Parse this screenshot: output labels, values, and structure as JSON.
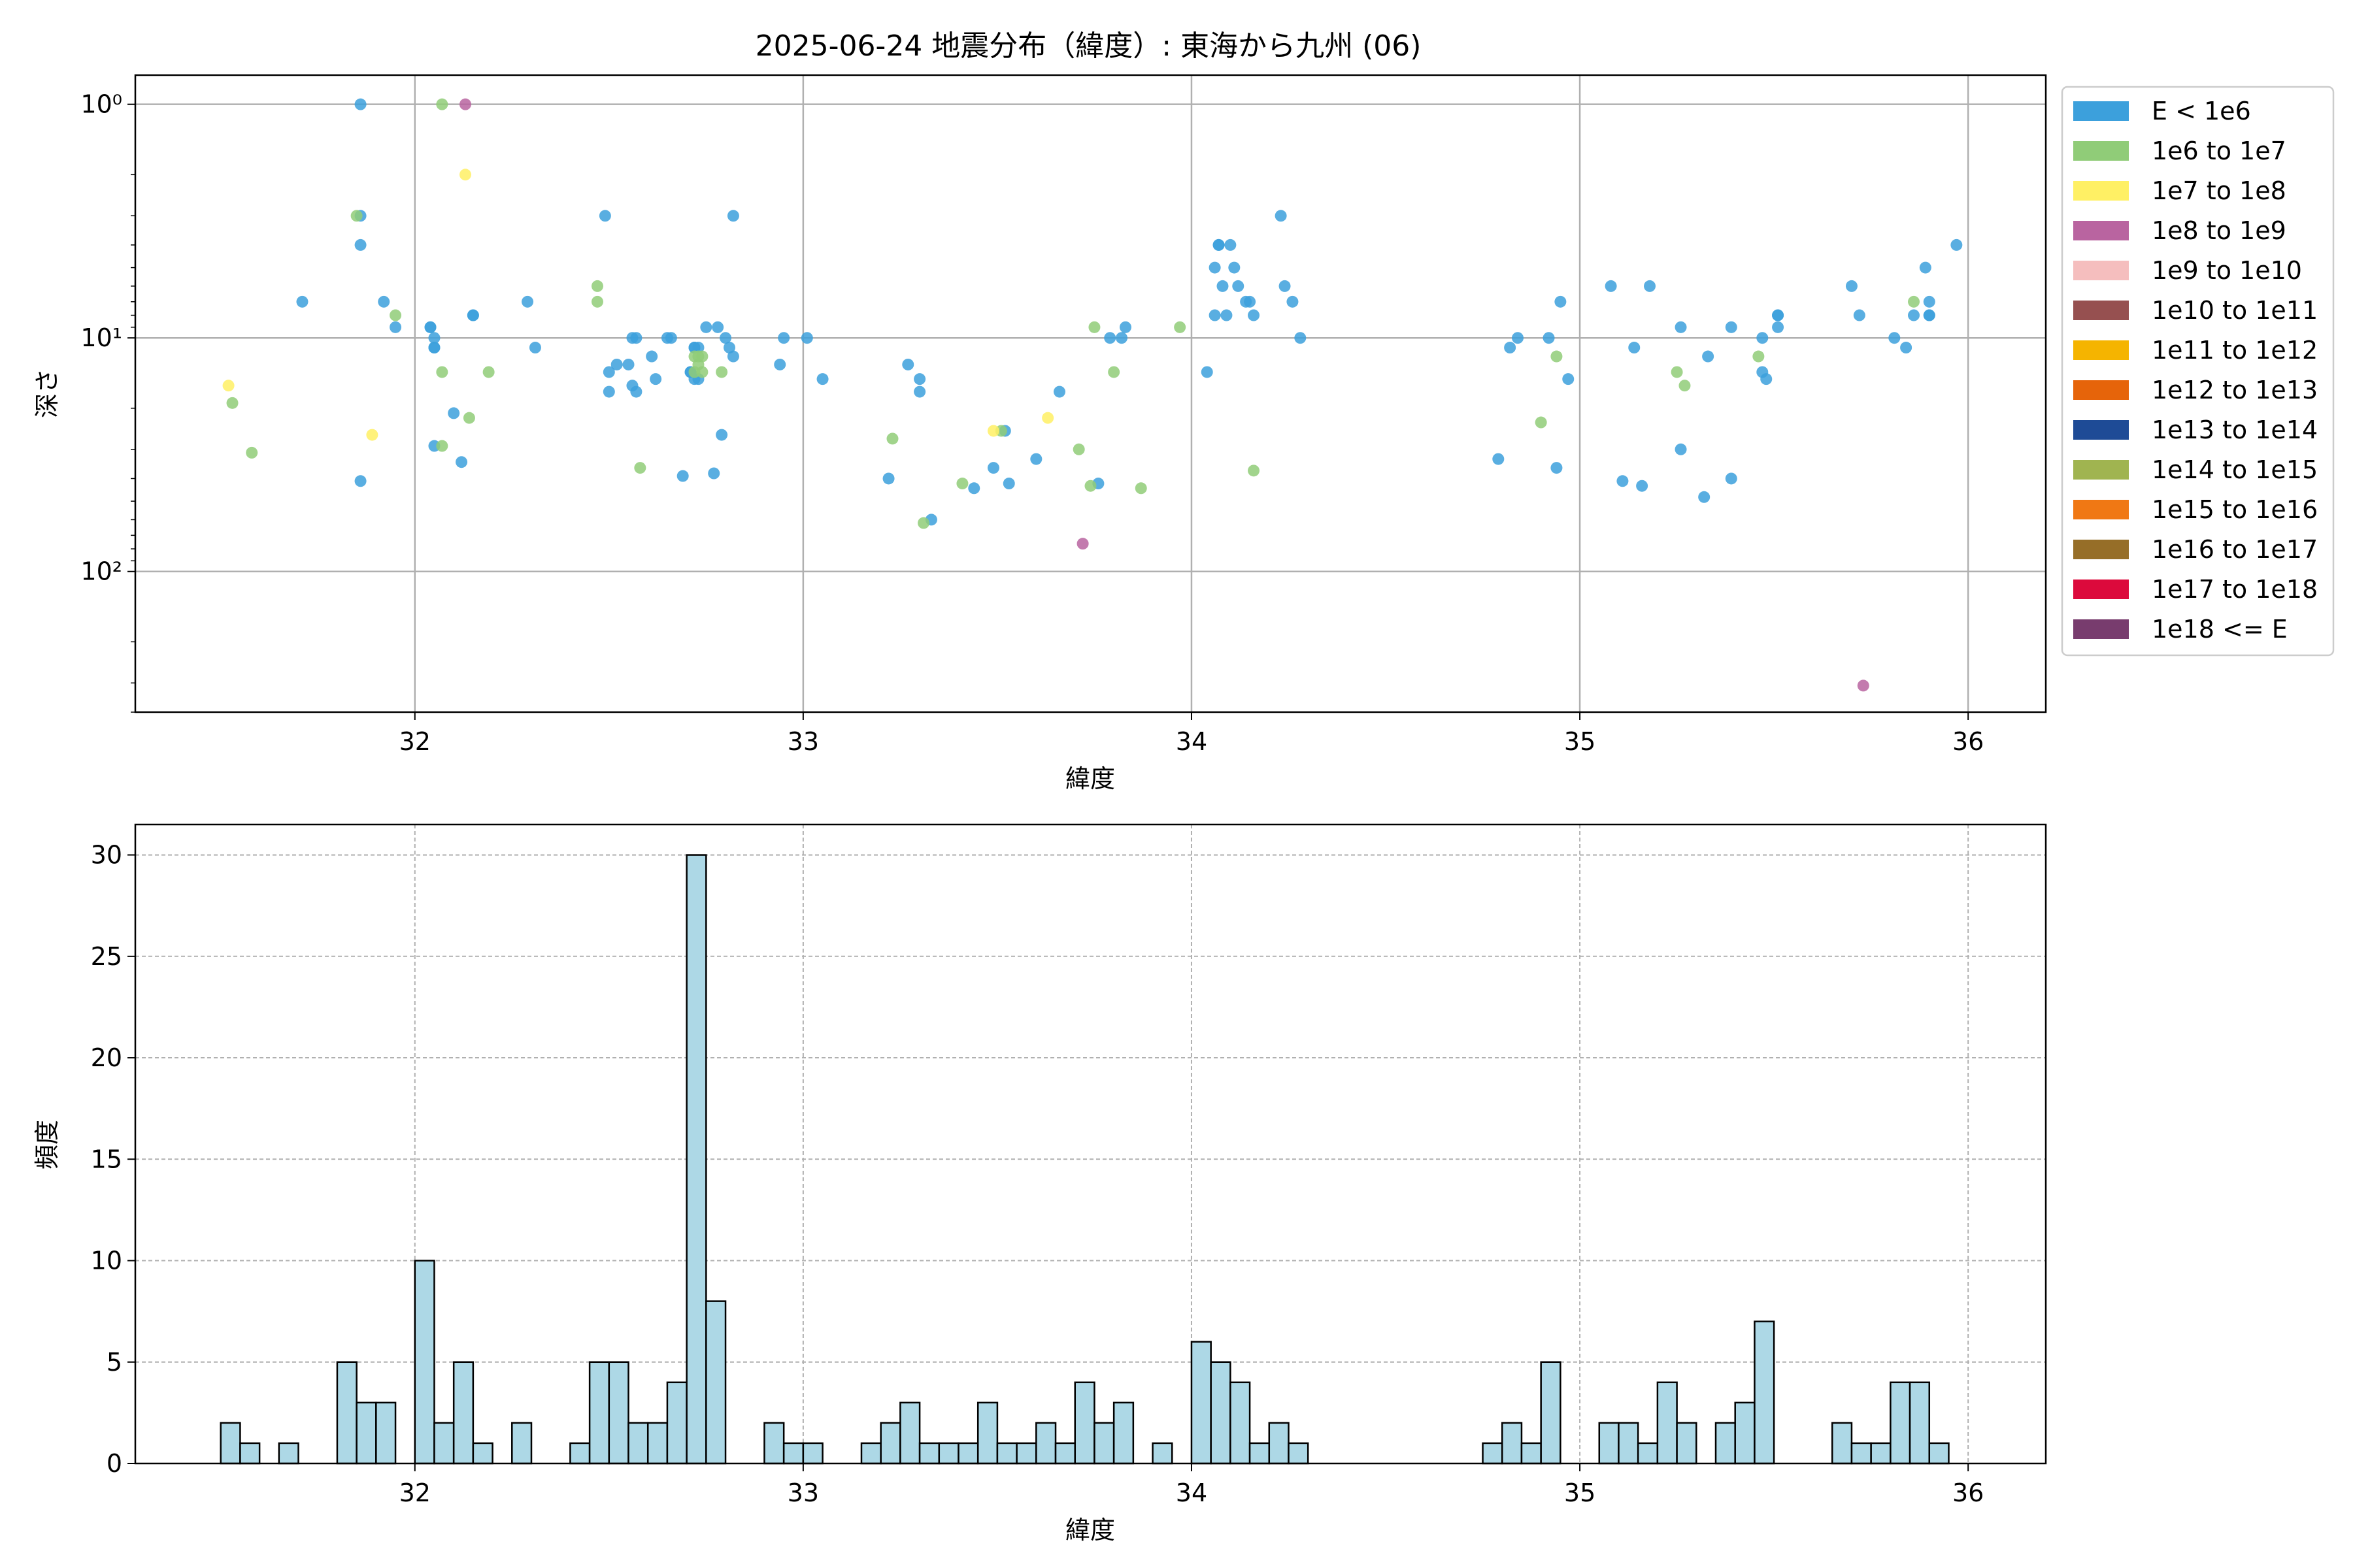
{
  "chart_data": [
    {
      "type": "scatter",
      "title": "2025-06-24 地震分布（緯度）: 東海から九州 (06)",
      "xlabel": "緯度",
      "ylabel": "深さ",
      "xlim": [
        31.28,
        36.2
      ],
      "ylim": [
        400,
        0.75
      ],
      "yscale": "log",
      "yaxis_inverted": true,
      "grid": true,
      "legend_placement": "outside upper right",
      "x_ticks": [
        "32",
        "33",
        "34",
        "35",
        "36"
      ],
      "y_ticks": [
        {
          "value": 1,
          "label": "10⁰"
        },
        {
          "value": 10,
          "label": "10¹"
        },
        {
          "value": 100,
          "label": "10²"
        }
      ],
      "legend": [
        {
          "label": "E < 1e6",
          "color": "#3ca0dc"
        },
        {
          "label": "1e6 to 1e7",
          "color": "#90cc78"
        },
        {
          "label": "1e7 to 1e8",
          "color": "#fff064"
        },
        {
          "label": "1e8 to 1e9",
          "color": "#b964a0"
        },
        {
          "label": "1e9 to 1e10",
          "color": "#f5bebe"
        },
        {
          "label": "1e10 to 1e11",
          "color": "#965050"
        },
        {
          "label": "1e11 to 1e12",
          "color": "#f5b400"
        },
        {
          "label": "1e12 to 1e13",
          "color": "#e6640a"
        },
        {
          "label": "1e13 to 1e14",
          "color": "#1e4b96"
        },
        {
          "label": "1e14 to 1e15",
          "color": "#a0b450"
        },
        {
          "label": "1e15 to 1e16",
          "color": "#f07814"
        },
        {
          "label": "1e16 to 1e17",
          "color": "#966e28"
        },
        {
          "label": "1e17 to 1e18",
          "color": "#dc0a3c"
        },
        {
          "label": "1e18 <= E",
          "color": "#783c6e"
        }
      ],
      "series": [
        {
          "class": 0,
          "points": [
            [
              31.71,
              7
            ],
            [
              31.86,
              1
            ],
            [
              31.86,
              3
            ],
            [
              31.86,
              4
            ],
            [
              31.86,
              41
            ],
            [
              31.92,
              7
            ],
            [
              31.95,
              9
            ],
            [
              32.04,
              9
            ],
            [
              32.04,
              9
            ],
            [
              32.05,
              10
            ],
            [
              32.05,
              11
            ],
            [
              32.05,
              11
            ],
            [
              32.05,
              29
            ],
            [
              32.1,
              21
            ],
            [
              32.12,
              34
            ],
            [
              32.15,
              8
            ],
            [
              32.15,
              8
            ],
            [
              32.29,
              7
            ],
            [
              32.31,
              11
            ],
            [
              32.49,
              3
            ],
            [
              32.5,
              14
            ],
            [
              32.5,
              17
            ],
            [
              32.52,
              13
            ],
            [
              32.55,
              13
            ],
            [
              32.56,
              10
            ],
            [
              32.56,
              16
            ],
            [
              32.57,
              10
            ],
            [
              32.57,
              17
            ],
            [
              32.61,
              12
            ],
            [
              32.62,
              15
            ],
            [
              32.65,
              10
            ],
            [
              32.66,
              10
            ],
            [
              32.69,
              39
            ],
            [
              32.71,
              14
            ],
            [
              32.71,
              14
            ],
            [
              32.72,
              11
            ],
            [
              32.72,
              11
            ],
            [
              32.72,
              15
            ],
            [
              32.73,
              11
            ],
            [
              32.73,
              15
            ],
            [
              32.75,
              9
            ],
            [
              32.77,
              38
            ],
            [
              32.78,
              9
            ],
            [
              32.79,
              26
            ],
            [
              32.8,
              10
            ],
            [
              32.81,
              11
            ],
            [
              32.82,
              12
            ],
            [
              32.82,
              3
            ],
            [
              32.94,
              13
            ],
            [
              32.95,
              10
            ],
            [
              33.01,
              10
            ],
            [
              33.05,
              15
            ],
            [
              33.22,
              40
            ],
            [
              33.27,
              13
            ],
            [
              33.3,
              15
            ],
            [
              33.3,
              17
            ],
            [
              33.33,
              60
            ],
            [
              33.44,
              44
            ],
            [
              33.49,
              36
            ],
            [
              33.52,
              25
            ],
            [
              33.53,
              42
            ],
            [
              33.6,
              33
            ],
            [
              33.66,
              17
            ],
            [
              33.76,
              42
            ],
            [
              33.79,
              10
            ],
            [
              33.82,
              10
            ],
            [
              33.83,
              9
            ],
            [
              34.04,
              14
            ],
            [
              34.06,
              5
            ],
            [
              34.06,
              8
            ],
            [
              34.07,
              4
            ],
            [
              34.07,
              4
            ],
            [
              34.08,
              6
            ],
            [
              34.09,
              8
            ],
            [
              34.1,
              4
            ],
            [
              34.11,
              5
            ],
            [
              34.12,
              6
            ],
            [
              34.14,
              7
            ],
            [
              34.15,
              7
            ],
            [
              34.16,
              8
            ],
            [
              34.23,
              3
            ],
            [
              34.24,
              6
            ],
            [
              34.26,
              7
            ],
            [
              34.28,
              10
            ],
            [
              34.79,
              33
            ],
            [
              34.82,
              11
            ],
            [
              34.84,
              10
            ],
            [
              34.92,
              10
            ],
            [
              34.94,
              36
            ],
            [
              34.95,
              7
            ],
            [
              34.97,
              15
            ],
            [
              35.08,
              6
            ],
            [
              35.11,
              41
            ],
            [
              35.14,
              11
            ],
            [
              35.16,
              43
            ],
            [
              35.18,
              6
            ],
            [
              35.26,
              9
            ],
            [
              35.26,
              30
            ],
            [
              35.32,
              48
            ],
            [
              35.33,
              12
            ],
            [
              35.39,
              9
            ],
            [
              35.39,
              40
            ],
            [
              35.47,
              10
            ],
            [
              35.47,
              14
            ],
            [
              35.48,
              15
            ],
            [
              35.51,
              8
            ],
            [
              35.51,
              8
            ],
            [
              35.51,
              9
            ],
            [
              35.7,
              6
            ],
            [
              35.72,
              8
            ],
            [
              35.81,
              10
            ],
            [
              35.84,
              11
            ],
            [
              35.86,
              8
            ],
            [
              35.89,
              5
            ],
            [
              35.9,
              7
            ],
            [
              35.9,
              8
            ],
            [
              35.9,
              8
            ],
            [
              35.97,
              4
            ]
          ]
        },
        {
          "class": 1,
          "points": [
            [
              31.53,
              19
            ],
            [
              31.58,
              31
            ],
            [
              31.85,
              3
            ],
            [
              31.95,
              8
            ],
            [
              32.07,
              1
            ],
            [
              32.07,
              29
            ],
            [
              32.07,
              14
            ],
            [
              32.14,
              22
            ],
            [
              32.19,
              14
            ],
            [
              32.47,
              6
            ],
            [
              32.47,
              7
            ],
            [
              32.58,
              36
            ],
            [
              32.72,
              14
            ],
            [
              32.72,
              12
            ],
            [
              32.73,
              13
            ],
            [
              32.73,
              12
            ],
            [
              32.74,
              12
            ],
            [
              32.74,
              14
            ],
            [
              32.79,
              14
            ],
            [
              33.23,
              27
            ],
            [
              33.31,
              62
            ],
            [
              33.41,
              42
            ],
            [
              33.51,
              25
            ],
            [
              33.71,
              30
            ],
            [
              33.74,
              43
            ],
            [
              33.75,
              9
            ],
            [
              33.8,
              14
            ],
            [
              33.87,
              44
            ],
            [
              33.97,
              9
            ],
            [
              34.16,
              37
            ],
            [
              34.9,
              23
            ],
            [
              34.94,
              12
            ],
            [
              35.25,
              14
            ],
            [
              35.27,
              16
            ],
            [
              35.46,
              12
            ],
            [
              35.86,
              7
            ]
          ]
        },
        {
          "class": 2,
          "points": [
            [
              31.52,
              16
            ],
            [
              31.89,
              26
            ],
            [
              32.13,
              2
            ],
            [
              33.49,
              25
            ],
            [
              33.63,
              22
            ]
          ]
        },
        {
          "class": 3,
          "points": [
            [
              32.13,
              1
            ],
            [
              33.72,
              76
            ],
            [
              35.73,
              308
            ]
          ]
        }
      ]
    },
    {
      "type": "bar",
      "title": "",
      "xlabel": "緯度",
      "ylabel": "頻度",
      "xlim": [
        31.28,
        36.2
      ],
      "ylim": [
        0,
        31.5
      ],
      "grid": true,
      "bin_width": 0.05,
      "bar_color": "#add8e6",
      "x_ticks": [
        "32",
        "33",
        "34",
        "35",
        "36"
      ],
      "y_ticks": [
        "0",
        "5",
        "10",
        "15",
        "20",
        "25",
        "30"
      ],
      "bins": [
        [
          31.5,
          2
        ],
        [
          31.55,
          1
        ],
        [
          31.65,
          1
        ],
        [
          31.8,
          5
        ],
        [
          31.85,
          3
        ],
        [
          31.9,
          3
        ],
        [
          32.0,
          10
        ],
        [
          32.05,
          2
        ],
        [
          32.1,
          5
        ],
        [
          32.15,
          1
        ],
        [
          32.25,
          2
        ],
        [
          32.4,
          1
        ],
        [
          32.45,
          5
        ],
        [
          32.5,
          5
        ],
        [
          32.55,
          2
        ],
        [
          32.6,
          2
        ],
        [
          32.65,
          4
        ],
        [
          32.7,
          30
        ],
        [
          32.75,
          8
        ],
        [
          32.9,
          2
        ],
        [
          32.95,
          1
        ],
        [
          33.0,
          1
        ],
        [
          33.15,
          1
        ],
        [
          33.2,
          2
        ],
        [
          33.25,
          3
        ],
        [
          33.3,
          1
        ],
        [
          33.35,
          1
        ],
        [
          33.4,
          1
        ],
        [
          33.45,
          3
        ],
        [
          33.5,
          1
        ],
        [
          33.55,
          1
        ],
        [
          33.6,
          2
        ],
        [
          33.65,
          1
        ],
        [
          33.7,
          4
        ],
        [
          33.75,
          2
        ],
        [
          33.8,
          3
        ],
        [
          33.9,
          1
        ],
        [
          34.0,
          6
        ],
        [
          34.05,
          5
        ],
        [
          34.1,
          4
        ],
        [
          34.15,
          1
        ],
        [
          34.2,
          2
        ],
        [
          34.25,
          1
        ],
        [
          34.75,
          1
        ],
        [
          34.8,
          2
        ],
        [
          34.85,
          1
        ],
        [
          34.9,
          5
        ],
        [
          35.05,
          2
        ],
        [
          35.1,
          2
        ],
        [
          35.15,
          1
        ],
        [
          35.2,
          4
        ],
        [
          35.25,
          2
        ],
        [
          35.35,
          2
        ],
        [
          35.4,
          3
        ],
        [
          35.45,
          7
        ],
        [
          35.65,
          2
        ],
        [
          35.7,
          1
        ],
        [
          35.75,
          1
        ],
        [
          35.8,
          4
        ],
        [
          35.85,
          4
        ],
        [
          35.9,
          1
        ]
      ]
    }
  ]
}
